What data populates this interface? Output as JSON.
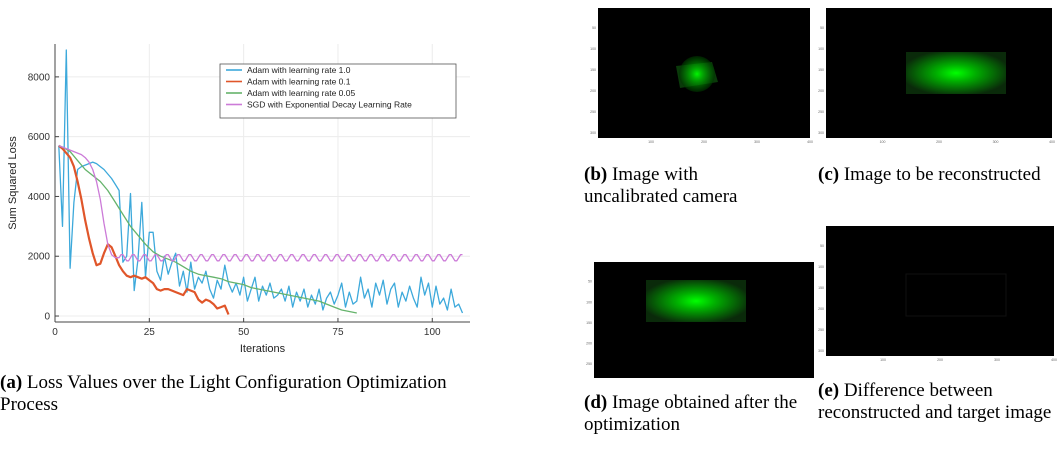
{
  "panel_a": {
    "caption_tag": "(a)",
    "caption_text": "Loss Values over the Light Configuration Optimization Process"
  },
  "panels": [
    {
      "id": "b",
      "tag": "(b)",
      "text": "Image with uncalibrated camera"
    },
    {
      "id": "c",
      "tag": "(c)",
      "text": "Image to be reconstructed"
    },
    {
      "id": "d",
      "tag": "(d)",
      "text": "Image obtained after the optimization"
    },
    {
      "id": "e",
      "tag": "(e)",
      "text": "Difference between reconstructed and target image"
    }
  ],
  "image_axes": {
    "x_ticks": [
      "100",
      "200",
      "300",
      "400"
    ],
    "y_ticks": [
      "50",
      "100",
      "150",
      "200",
      "250",
      "300"
    ]
  },
  "colors": {
    "adam_1": "#3da9db",
    "adam_01": "#e0562a",
    "adam_005": "#65b36b",
    "sgd": "#cc7bd8",
    "image_bg": "#000000",
    "green_glow": "#00ff00"
  },
  "chart_data": {
    "type": "line",
    "xlabel": "Iterations",
    "ylabel": "Sum Squared Loss",
    "xlim": [
      0,
      110
    ],
    "ylim": [
      -200,
      9100
    ],
    "xticks": [
      0,
      25,
      50,
      75,
      100
    ],
    "yticks": [
      0,
      2000,
      4000,
      6000,
      8000
    ],
    "grid": true,
    "legend_position": "top-right",
    "series": [
      {
        "name": "Adam with learning rate 1.0",
        "color": "#3da9db",
        "x": [
          1,
          2,
          3,
          4,
          5,
          6,
          7,
          8,
          9,
          10,
          11,
          12,
          13,
          14,
          15,
          16,
          17,
          18,
          19,
          20,
          21,
          22,
          23,
          24,
          25,
          26,
          27,
          28,
          29,
          30,
          31,
          32,
          33,
          34,
          35,
          36,
          37,
          38,
          39,
          40,
          41,
          42,
          43,
          44,
          45,
          46,
          47,
          48,
          49,
          50,
          51,
          52,
          53,
          54,
          55,
          56,
          57,
          58,
          59,
          60,
          61,
          62,
          63,
          64,
          65,
          66,
          67,
          68,
          69,
          70,
          71,
          72,
          73,
          74,
          75,
          76,
          77,
          78,
          79,
          80,
          81,
          82,
          83,
          84,
          85,
          86,
          87,
          88,
          89,
          90,
          91,
          92,
          93,
          94,
          95,
          96,
          97,
          98,
          99,
          100,
          101,
          102,
          103,
          104,
          105,
          106,
          107,
          108
        ],
        "y": [
          5700,
          3000,
          8900,
          1600,
          3800,
          4900,
          5000,
          5050,
          5100,
          5150,
          5100,
          5000,
          4900,
          4750,
          4600,
          4400,
          4200,
          1800,
          2000,
          4100,
          850,
          1900,
          3800,
          1300,
          2800,
          2800,
          1500,
          1200,
          2000,
          1400,
          1800,
          2100,
          1000,
          1500,
          800,
          1800,
          900,
          1300,
          1100,
          1500,
          900,
          600,
          1200,
          900,
          1700,
          1100,
          800,
          1100,
          700,
          1300,
          500,
          900,
          1300,
          500,
          1000,
          700,
          1100,
          600,
          700,
          900,
          500,
          1000,
          300,
          800,
          500,
          900,
          300,
          700,
          400,
          900,
          200,
          600,
          800,
          400,
          700,
          1100,
          300,
          800,
          400,
          500,
          1300,
          600,
          900,
          300,
          1100,
          700,
          1200,
          400,
          900,
          1100,
          300,
          800,
          500,
          1000,
          600,
          300,
          1300,
          700,
          1100,
          300,
          1000,
          400,
          600,
          200,
          900,
          300,
          400,
          100
        ]
      },
      {
        "name": "Adam with learning rate 0.1",
        "color": "#e0562a",
        "x": [
          1,
          2,
          3,
          4,
          5,
          6,
          7,
          8,
          9,
          10,
          11,
          12,
          13,
          14,
          15,
          16,
          17,
          18,
          19,
          20,
          21,
          22,
          23,
          24,
          25,
          26,
          27,
          28,
          29,
          30,
          31,
          32,
          33,
          34,
          35,
          36,
          37,
          38,
          39,
          40,
          41,
          42,
          43,
          44,
          45,
          46
        ],
        "y": [
          5700,
          5600,
          5450,
          5300,
          5000,
          4500,
          3900,
          3200,
          2600,
          2100,
          1700,
          1750,
          2100,
          2400,
          2300,
          2000,
          1700,
          1500,
          1350,
          1300,
          1350,
          1300,
          1250,
          1300,
          1200,
          1100,
          900,
          850,
          900,
          900,
          850,
          800,
          750,
          700,
          900,
          850,
          800,
          550,
          450,
          550,
          500,
          400,
          250,
          300,
          350,
          50
        ]
      },
      {
        "name": "Adam with learning rate 0.05",
        "color": "#65b36b",
        "x": [
          1,
          2,
          4,
          6,
          8,
          10,
          12,
          14,
          16,
          18,
          20,
          22,
          24,
          26,
          28,
          30,
          32,
          34,
          36,
          38,
          40,
          42,
          44,
          46,
          48,
          50,
          52,
          54,
          56,
          58,
          60,
          62,
          64,
          66,
          68,
          70,
          72,
          74,
          76,
          78,
          80
        ],
        "y": [
          5700,
          5650,
          5500,
          5200,
          4900,
          4700,
          4500,
          4200,
          3800,
          3400,
          3000,
          2700,
          2400,
          2150,
          2000,
          1900,
          1800,
          1650,
          1500,
          1400,
          1350,
          1300,
          1250,
          1150,
          1100,
          1050,
          950,
          900,
          850,
          800,
          750,
          700,
          650,
          600,
          550,
          500,
          400,
          300,
          200,
          150,
          100
        ]
      },
      {
        "name": "SGD with Exponential Decay Learning Rate",
        "color": "#cc7bd8",
        "x": [
          1,
          2,
          3,
          4,
          5,
          6,
          7,
          8,
          9,
          10,
          11,
          12,
          13,
          14,
          15,
          16,
          17
        ],
        "y": [
          5700,
          5650,
          5600,
          5550,
          5500,
          5450,
          5400,
          5300,
          5150,
          4900,
          4500,
          3900,
          3100,
          2400,
          2050,
          1950,
          1950
        ],
        "oscillation": {
          "from": 17,
          "to": 108,
          "center": 1950,
          "amplitude": 120
        }
      }
    ]
  }
}
